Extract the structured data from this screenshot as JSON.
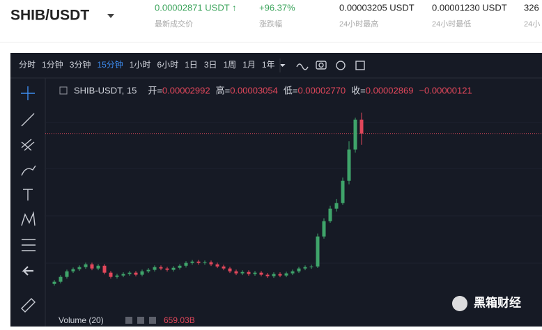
{
  "header": {
    "pair": "SHIB/USDT",
    "stats": [
      {
        "value": "0.00002871 USDT ↑",
        "label": "最新成交价",
        "color": "#3aa35a"
      },
      {
        "value": "+96.37%",
        "label": "涨跌幅",
        "color": "#3aa35a"
      },
      {
        "value": "0.00003205 USDT",
        "label": "24小时最高",
        "color": "#222"
      },
      {
        "value": "0.00001230 USDT",
        "label": "24小时最低",
        "color": "#222"
      },
      {
        "value": "326",
        "label": "24小",
        "color": "#222"
      }
    ]
  },
  "toolbar": {
    "intervals": [
      "分时",
      "1分钟",
      "3分钟",
      "15分钟",
      "1小时",
      "6小时",
      "1日",
      "3日",
      "1周",
      "1月",
      "1年"
    ],
    "active": 3
  },
  "chart_data": {
    "type": "candlestick",
    "symbol": "SHIB-USDT, 15",
    "ohlc_legend": [
      {
        "label": "开=",
        "value": "0.00002992"
      },
      {
        "label": "高=",
        "value": "0.00003054"
      },
      {
        "label": "低=",
        "value": "0.00002770"
      },
      {
        "label": "收=",
        "value": "0.00002869"
      },
      {
        "label": "",
        "value": "−0.00000121"
      }
    ],
    "volume_label": "Volume (20)",
    "volume_value": "659.03B",
    "up_color": "#3fa46a",
    "down_color": "#e2475b",
    "ylim": [
      1.28e-05,
      3.36e-05
    ],
    "open": [
      1.54e-05,
      1.559e-05,
      1.602e-05,
      1.651e-05,
      1.67e-05,
      1.688e-05,
      1.713e-05,
      1.676e-05,
      1.7e-05,
      1.639e-05,
      1.602e-05,
      1.614e-05,
      1.627e-05,
      1.639e-05,
      1.621e-05,
      1.651e-05,
      1.664e-05,
      1.688e-05,
      1.676e-05,
      1.664e-05,
      1.682e-05,
      1.7e-05,
      1.725e-05,
      1.737e-05,
      1.725e-05,
      1.731e-05,
      1.713e-05,
      1.694e-05,
      1.676e-05,
      1.651e-05,
      1.633e-05,
      1.645e-05,
      1.627e-05,
      1.639e-05,
      1.621e-05,
      1.608e-05,
      1.627e-05,
      1.614e-05,
      1.633e-05,
      1.651e-05,
      1.676e-05,
      1.688e-05,
      1.694e-05,
      1.959e-05,
      2.094e-05,
      2.205e-05,
      2.254e-05,
      2.451e-05,
      2.728e-05,
      2.992e-05
    ],
    "high": [
      1.574e-05,
      1.617e-05,
      1.666e-05,
      1.685e-05,
      1.703e-05,
      1.728e-05,
      1.728e-05,
      1.715e-05,
      1.715e-05,
      1.654e-05,
      1.629e-05,
      1.642e-05,
      1.654e-05,
      1.654e-05,
      1.666e-05,
      1.679e-05,
      1.703e-05,
      1.703e-05,
      1.691e-05,
      1.697e-05,
      1.715e-05,
      1.74e-05,
      1.752e-05,
      1.752e-05,
      1.746e-05,
      1.746e-05,
      1.728e-05,
      1.709e-05,
      1.691e-05,
      1.666e-05,
      1.66e-05,
      1.66e-05,
      1.654e-05,
      1.654e-05,
      1.636e-05,
      1.642e-05,
      1.642e-05,
      1.648e-05,
      1.666e-05,
      1.691e-05,
      1.703e-05,
      1.709e-05,
      1.985e-05,
      2.12e-05,
      2.23e-05,
      2.29e-05,
      2.48e-05,
      2.8e-05,
      3.01e-05,
      3.054e-05
    ],
    "low": [
      1.525e-05,
      1.544e-05,
      1.587e-05,
      1.636e-05,
      1.655e-05,
      1.673e-05,
      1.661e-05,
      1.661e-05,
      1.624e-05,
      1.587e-05,
      1.587e-05,
      1.599e-05,
      1.612e-05,
      1.606e-05,
      1.606e-05,
      1.636e-05,
      1.649e-05,
      1.661e-05,
      1.649e-05,
      1.649e-05,
      1.667e-05,
      1.685e-05,
      1.71e-05,
      1.71e-05,
      1.71e-05,
      1.698e-05,
      1.679e-05,
      1.661e-05,
      1.636e-05,
      1.618e-05,
      1.618e-05,
      1.612e-05,
      1.612e-05,
      1.606e-05,
      1.593e-05,
      1.593e-05,
      1.599e-05,
      1.599e-05,
      1.618e-05,
      1.636e-05,
      1.661e-05,
      1.673e-05,
      1.68e-05,
      1.94e-05,
      2.08e-05,
      2.18e-05,
      2.24e-05,
      2.42e-05,
      2.7e-05,
      2.77e-05
    ],
    "close": [
      1.559e-05,
      1.602e-05,
      1.651e-05,
      1.67e-05,
      1.688e-05,
      1.713e-05,
      1.676e-05,
      1.7e-05,
      1.639e-05,
      1.602e-05,
      1.614e-05,
      1.627e-05,
      1.639e-05,
      1.621e-05,
      1.651e-05,
      1.664e-05,
      1.688e-05,
      1.676e-05,
      1.664e-05,
      1.682e-05,
      1.7e-05,
      1.725e-05,
      1.737e-05,
      1.725e-05,
      1.731e-05,
      1.713e-05,
      1.694e-05,
      1.676e-05,
      1.651e-05,
      1.633e-05,
      1.645e-05,
      1.627e-05,
      1.639e-05,
      1.621e-05,
      1.608e-05,
      1.627e-05,
      1.614e-05,
      1.633e-05,
      1.651e-05,
      1.676e-05,
      1.688e-05,
      1.694e-05,
      1.959e-05,
      2.094e-05,
      2.205e-05,
      2.254e-05,
      2.451e-05,
      2.728e-05,
      2.992e-05,
      2.869e-05
    ]
  },
  "watermark": "黑箱财经"
}
